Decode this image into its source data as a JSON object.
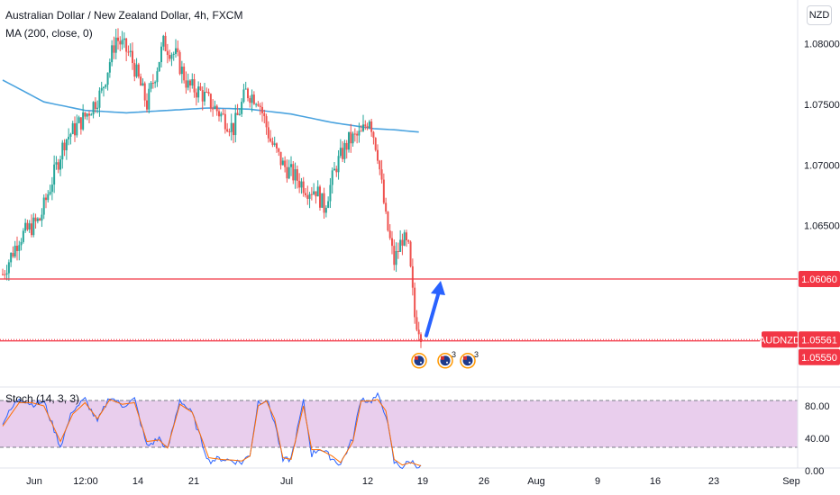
{
  "header": {
    "title": "Australian Dollar / New Zealand Dollar, 4h, FXCM",
    "ma_label": "MA (200, close, 0)",
    "currency": "NZD"
  },
  "stoch": {
    "label": "Stoch (14, 3, 3)",
    "upper_band": 80,
    "lower_band": 20
  },
  "price_badges": {
    "level": "1.06060",
    "symbol": "AUDNZD",
    "last": "1.05561",
    "support": "1.05550"
  },
  "colors": {
    "up": "#26a69a",
    "down": "#ef5350",
    "ma": "#4aa3df",
    "level_line": "#f23645",
    "arrow": "#2962ff",
    "stoch_k": "#2962ff",
    "stoch_d": "#ff6d00",
    "stoch_band": "#e1bee7"
  },
  "events": {
    "icon": "australia-flag-icon",
    "badges": [
      "",
      "3",
      "3"
    ]
  },
  "chart_data": [
    {
      "type": "candlestick",
      "title": "Australian Dollar / New Zealand Dollar, 4h, FXCM",
      "ylim": [
        1.0517,
        1.0836
      ],
      "yticks": [
        "1.06500",
        "1.07000",
        "1.07500",
        "1.08000"
      ],
      "xticks": [
        "Jun",
        "12:00",
        "14",
        "21",
        "Jul",
        "12",
        "19",
        "26",
        "Aug",
        "9",
        "16",
        "23",
        "Sep"
      ],
      "price_path": [
        [
          0,
          1.061
        ],
        [
          8,
          1.064
        ],
        [
          18,
          1.0655
        ],
        [
          30,
          1.072
        ],
        [
          40,
          1.074
        ],
        [
          48,
          1.076
        ],
        [
          55,
          1.0805
        ],
        [
          62,
          1.079
        ],
        [
          70,
          1.075
        ],
        [
          78,
          1.08
        ],
        [
          84,
          1.079
        ],
        [
          90,
          1.0765
        ],
        [
          96,
          1.076
        ],
        [
          104,
          1.0745
        ],
        [
          112,
          1.073
        ],
        [
          118,
          1.076
        ],
        [
          124,
          1.0755
        ],
        [
          130,
          1.072
        ],
        [
          136,
          1.07
        ],
        [
          142,
          1.069
        ],
        [
          148,
          1.068
        ],
        [
          152,
          1.068
        ],
        [
          156,
          1.0665
        ],
        [
          162,
          1.07
        ],
        [
          168,
          1.072
        ],
        [
          174,
          1.0725
        ],
        [
          178,
          1.074
        ],
        [
          182,
          1.071
        ],
        [
          186,
          1.0655
        ],
        [
          190,
          1.062
        ],
        [
          194,
          1.064
        ],
        [
          197,
          1.063
        ],
        [
          200,
          1.0575
        ],
        [
          203,
          1.0562
        ]
      ],
      "ma": {
        "label": "MA (200, close, 0)",
        "path": [
          [
            0,
            1.077
          ],
          [
            20,
            1.0752
          ],
          [
            40,
            1.0745
          ],
          [
            60,
            1.0743
          ],
          [
            80,
            1.0745
          ],
          [
            100,
            1.0747
          ],
          [
            120,
            1.0746
          ],
          [
            140,
            1.0742
          ],
          [
            160,
            1.0735
          ],
          [
            180,
            1.073
          ],
          [
            190,
            1.0729
          ],
          [
            203,
            1.0727
          ]
        ]
      },
      "horizontal_levels": [
        1.0606,
        1.0555
      ],
      "last_price": 1.05561
    },
    {
      "type": "line",
      "title": "Stoch (14, 3, 3)",
      "ylim": [
        0,
        100
      ],
      "yticks": [
        "0.00",
        "40.00",
        "80.00"
      ],
      "bands": [
        20,
        80
      ],
      "series": [
        {
          "path": [
            [
              0,
              60
            ],
            [
              8,
              90
            ],
            [
              14,
              82
            ],
            [
              20,
              85
            ],
            [
              28,
              30
            ],
            [
              34,
              75
            ],
            [
              40,
              88
            ],
            [
              46,
              60
            ],
            [
              52,
              92
            ],
            [
              58,
              80
            ],
            [
              64,
              88
            ],
            [
              70,
              30
            ],
            [
              76,
              40
            ],
            [
              80,
              25
            ],
            [
              86,
              88
            ],
            [
              92,
              70
            ],
            [
              96,
              40
            ],
            [
              100,
              12
            ],
            [
              106,
              15
            ],
            [
              112,
              12
            ],
            [
              116,
              10
            ],
            [
              120,
              20
            ],
            [
              124,
              85
            ],
            [
              128,
              88
            ],
            [
              132,
              60
            ],
            [
              136,
              12
            ],
            [
              140,
              15
            ],
            [
              146,
              85
            ],
            [
              150,
              20
            ],
            [
              154,
              28
            ],
            [
              160,
              15
            ],
            [
              164,
              8
            ],
            [
              170,
              40
            ],
            [
              174,
              90
            ],
            [
              178,
              85
            ],
            [
              182,
              92
            ],
            [
              186,
              70
            ],
            [
              190,
              10
            ],
            [
              194,
              5
            ],
            [
              198,
              12
            ],
            [
              203,
              4
            ]
          ]
        },
        {
          "path": [
            [
              0,
              55
            ],
            [
              8,
              84
            ],
            [
              14,
              84
            ],
            [
              20,
              80
            ],
            [
              28,
              36
            ],
            [
              34,
              70
            ],
            [
              40,
              84
            ],
            [
              46,
              64
            ],
            [
              52,
              88
            ],
            [
              58,
              82
            ],
            [
              64,
              84
            ],
            [
              70,
              36
            ],
            [
              76,
              38
            ],
            [
              80,
              28
            ],
            [
              86,
              82
            ],
            [
              92,
              72
            ],
            [
              96,
              44
            ],
            [
              100,
              16
            ],
            [
              106,
              14
            ],
            [
              112,
              13
            ],
            [
              116,
              12
            ],
            [
              120,
              18
            ],
            [
              124,
              80
            ],
            [
              128,
              86
            ],
            [
              132,
              64
            ],
            [
              136,
              16
            ],
            [
              140,
              14
            ],
            [
              146,
              80
            ],
            [
              150,
              26
            ],
            [
              154,
              26
            ],
            [
              160,
              18
            ],
            [
              164,
              10
            ],
            [
              170,
              36
            ],
            [
              174,
              86
            ],
            [
              178,
              86
            ],
            [
              182,
              88
            ],
            [
              186,
              74
            ],
            [
              190,
              14
            ],
            [
              194,
              7
            ],
            [
              198,
              10
            ],
            [
              203,
              6
            ]
          ]
        }
      ]
    }
  ]
}
